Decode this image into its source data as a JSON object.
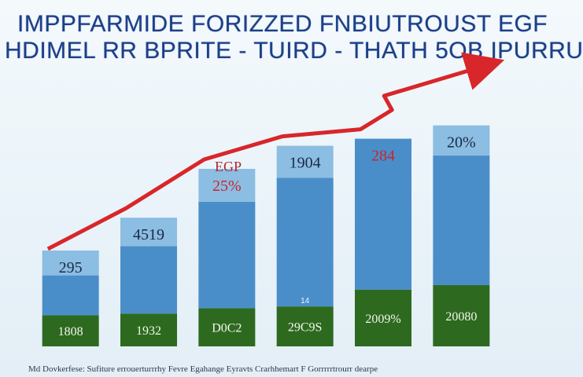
{
  "chart_data": {
    "type": "bar",
    "title_lines": [
      "IMPPFARMIDE FORIZZED FNBIUTROUST EGF",
      "HDIMEL RR BPRITE - TUIRD  -  THATH 5OB IPURRU"
    ],
    "categories": [
      "",
      "",
      "",
      "",
      "",
      ""
    ],
    "series": [
      {
        "values": [
          35,
          37,
          43,
          45,
          64,
          69
        ],
        "color": "#2d6a1f"
      },
      {
        "values": [
          45,
          76,
          120,
          145,
          170,
          146
        ],
        "color": "#4a8ec9"
      },
      {
        "values": [
          28,
          32,
          37,
          36,
          0,
          34
        ],
        "color": "#8cbde2"
      }
    ],
    "value_labels": [
      "295",
      "4519",
      "25%",
      "1904",
      "284",
      "20%"
    ],
    "value_label_colors": [
      "#1a2a44",
      "#1a2a44",
      "#c8262a",
      "#1a2a44",
      "#c8262a",
      "#1a2a44"
    ],
    "base_labels": [
      "1808",
      "1932",
      "D0C2",
      "29C9S",
      "2009%",
      "20080"
    ],
    "mid_labels": [
      "",
      "",
      "",
      "14",
      "",
      ""
    ],
    "trend_label": "EGP",
    "trend_color": "#d8262a",
    "ylim": [
      0,
      300
    ],
    "grid": false,
    "legend": "none"
  },
  "footnote": "Md Dovkerfese: Sufiture errouerturrrhy Fevre Egahange Eyravts Crarhhemart F Gorrrrrtrourr dearpe"
}
